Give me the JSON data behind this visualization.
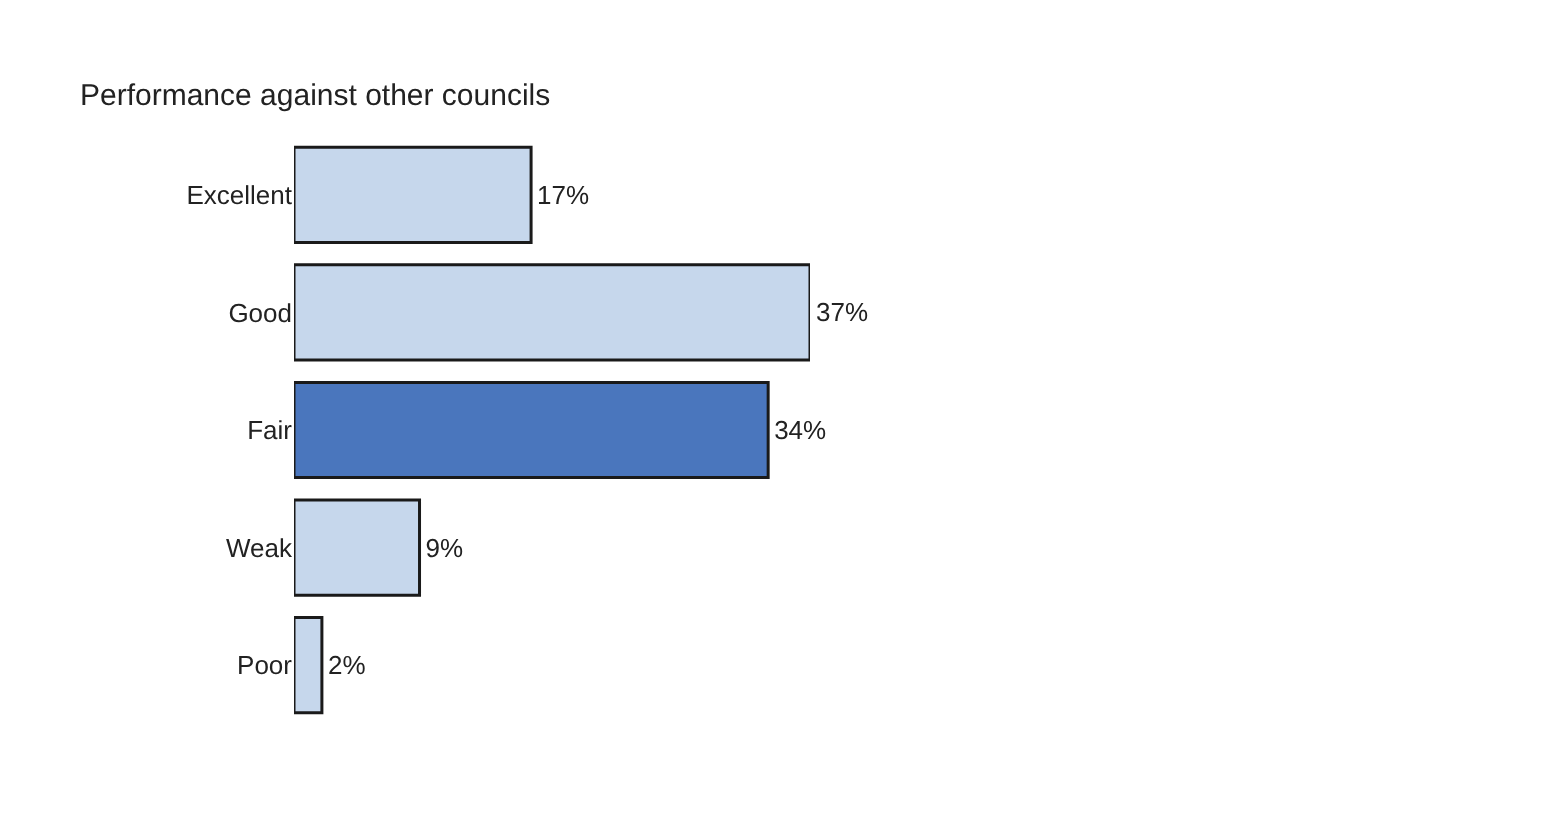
{
  "chart_data": {
    "type": "bar",
    "orientation": "horizontal",
    "title": "Performance against other councils",
    "categories": [
      "Excellent",
      "Good",
      "Fair",
      "Weak",
      "Poor"
    ],
    "values": [
      17,
      37,
      34,
      9,
      2
    ],
    "colors": [
      "#c6d7ec",
      "#c6d7ec",
      "#4a76bd",
      "#c6d7ec",
      "#c6d7ec"
    ],
    "value_labels": [
      "17%",
      "37%",
      "34%",
      "9%",
      "2%"
    ],
    "legend": false,
    "tick_labels": "y"
  }
}
